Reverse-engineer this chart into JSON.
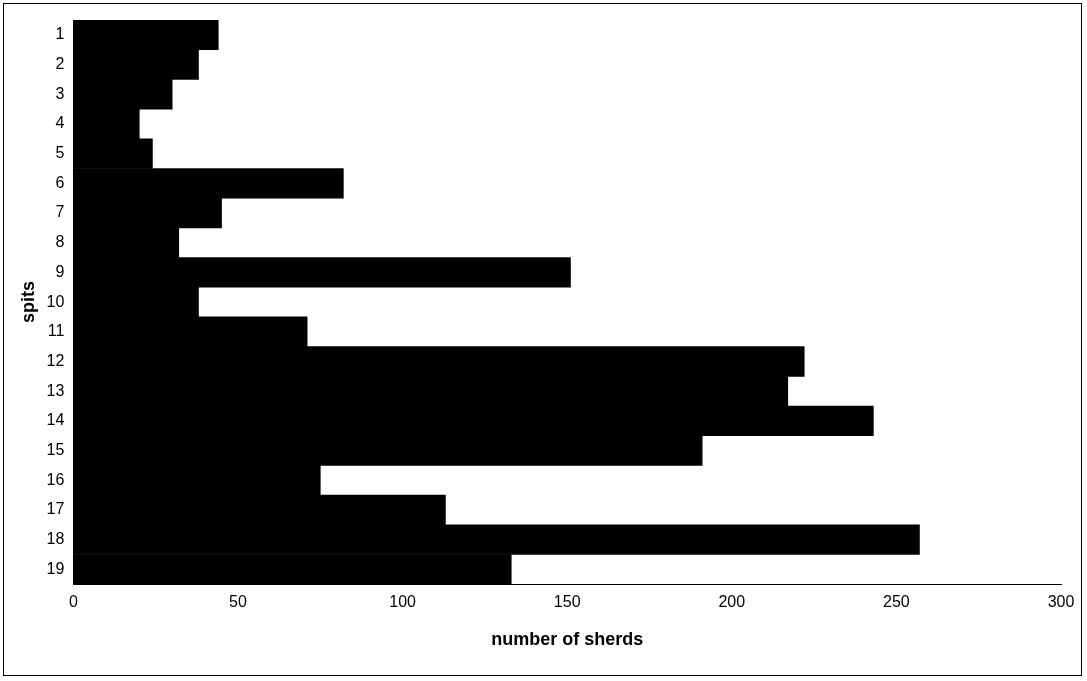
{
  "chart_data": {
    "type": "bar",
    "orientation": "horizontal",
    "xlabel": "number of sherds",
    "ylabel": "spits",
    "categories": [
      "1",
      "2",
      "3",
      "4",
      "5",
      "6",
      "7",
      "8",
      "9",
      "10",
      "11",
      "12",
      "13",
      "14",
      "15",
      "16",
      "17",
      "18",
      "19"
    ],
    "values": [
      44,
      38,
      30,
      20,
      24,
      82,
      45,
      32,
      151,
      38,
      71,
      222,
      217,
      243,
      191,
      75,
      113,
      257,
      133
    ],
    "color": "#000000",
    "xlim": [
      0,
      300
    ],
    "xticks": [
      0,
      50,
      100,
      150,
      200,
      250,
      300
    ],
    "grid": false,
    "legend": false
  }
}
